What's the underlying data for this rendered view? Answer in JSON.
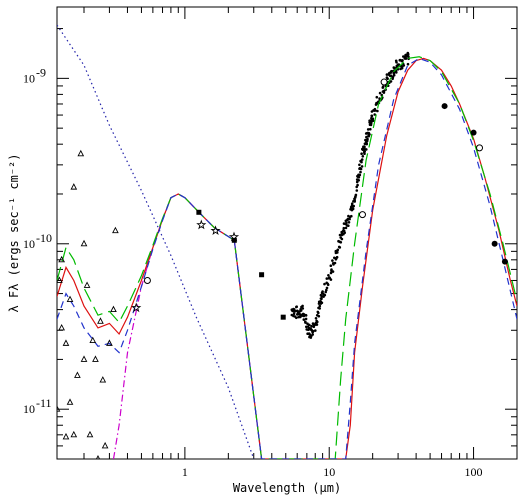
{
  "chart_data": {
    "type": "line",
    "xlabel": "Wavelength (μm)",
    "ylabel": "λ Fλ (ergs sec⁻¹ cm⁻²)",
    "xscale": "log",
    "yscale": "log",
    "xlim": [
      0.13,
      200
    ],
    "ylim": [
      5e-12,
      2.7e-09
    ],
    "grid": false,
    "x_tick_labels": [
      {
        "v": 1,
        "label": "1"
      },
      {
        "v": 10,
        "label": "10"
      },
      {
        "v": 100,
        "label": "100"
      }
    ],
    "y_tick_labels": [
      {
        "v": 1e-11,
        "label": "10",
        "exp": "-11"
      },
      {
        "v": 1e-10,
        "label": "10",
        "exp": "-10"
      },
      {
        "v": 1e-09,
        "label": "10",
        "exp": "-9"
      }
    ],
    "series": [
      {
        "style": "dotted",
        "color": "#2222aa",
        "points": [
          [
            0.13,
            2.1e-09
          ],
          [
            0.2,
            1.2e-09
          ],
          [
            0.3,
            5.2e-10
          ],
          [
            0.5,
            2.1e-10
          ],
          [
            0.8,
            8.5e-11
          ],
          [
            1.2,
            3.6e-11
          ],
          [
            2.0,
            1.35e-11
          ],
          [
            3.0,
            5e-12
          ]
        ]
      },
      {
        "style": "dash-dot",
        "color": "#cc00cc",
        "points": [
          [
            0.32,
            5e-12
          ],
          [
            0.35,
            8e-12
          ],
          [
            0.4,
            2.2e-11
          ],
          [
            0.5,
            5.5e-11
          ],
          [
            0.6,
            9.5e-11
          ],
          [
            0.7,
            1.4e-10
          ],
          [
            0.8,
            1.9e-10
          ],
          [
            0.9,
            2e-10
          ],
          [
            1.0,
            1.9e-10
          ],
          [
            1.3,
            1.5e-10
          ],
          [
            1.6,
            1.25e-10
          ],
          [
            2.2,
            1.05e-10
          ],
          [
            3.4,
            5e-12
          ]
        ]
      },
      {
        "style": "solid",
        "color": "#dd1111",
        "points": [
          [
            0.13,
            4.8e-11
          ],
          [
            0.15,
            7.2e-11
          ],
          [
            0.17,
            6e-11
          ],
          [
            0.2,
            4.2e-11
          ],
          [
            0.25,
            3.1e-11
          ],
          [
            0.3,
            3.3e-11
          ],
          [
            0.35,
            2.85e-11
          ],
          [
            0.4,
            3.6e-11
          ],
          [
            0.5,
            6e-11
          ],
          [
            0.6,
            9.5e-11
          ],
          [
            0.7,
            1.4e-10
          ],
          [
            0.8,
            1.9e-10
          ],
          [
            0.9,
            2e-10
          ],
          [
            1.0,
            1.9e-10
          ],
          [
            1.3,
            1.5e-10
          ],
          [
            1.6,
            1.25e-10
          ],
          [
            2.2,
            1.05e-10
          ],
          [
            3.4,
            5e-12
          ],
          [
            13,
            5e-12
          ],
          [
            14,
            8e-12
          ],
          [
            15,
            2.2e-11
          ],
          [
            17,
            5.5e-11
          ],
          [
            20,
            1.6e-10
          ],
          [
            25,
            4.5e-10
          ],
          [
            30,
            8.3e-10
          ],
          [
            35,
            1.12e-09
          ],
          [
            40,
            1.28e-09
          ],
          [
            45,
            1.32e-09
          ],
          [
            50,
            1.28e-09
          ],
          [
            60,
            1.12e-09
          ],
          [
            70,
            9e-10
          ],
          [
            80,
            7e-10
          ],
          [
            100,
            4.3e-10
          ],
          [
            120,
            2.5e-10
          ],
          [
            150,
            1.2e-10
          ],
          [
            180,
            6e-11
          ],
          [
            200,
            4.2e-11
          ]
        ]
      },
      {
        "style": "long-dash",
        "color": "#00bb00",
        "points": [
          [
            0.13,
            6e-11
          ],
          [
            0.15,
            9.5e-11
          ],
          [
            0.17,
            8e-11
          ],
          [
            0.2,
            5.4e-11
          ],
          [
            0.25,
            3.7e-11
          ],
          [
            0.3,
            3.9e-11
          ],
          [
            0.35,
            3.35e-11
          ],
          [
            0.4,
            4.2e-11
          ],
          [
            0.5,
            6.4e-11
          ],
          [
            0.6,
            9.8e-11
          ],
          [
            0.7,
            1.42e-10
          ],
          [
            0.8,
            1.9e-10
          ],
          [
            0.9,
            2e-10
          ],
          [
            1.0,
            1.9e-10
          ],
          [
            1.3,
            1.5e-10
          ],
          [
            1.6,
            1.25e-10
          ],
          [
            2.2,
            1.05e-10
          ],
          [
            3.4,
            5e-12
          ],
          [
            11,
            5e-12
          ],
          [
            12,
            1.5e-11
          ],
          [
            13,
            3.5e-11
          ],
          [
            15,
            1e-10
          ],
          [
            18,
            3.2e-10
          ],
          [
            22,
            7e-10
          ],
          [
            28,
            1.1e-09
          ],
          [
            35,
            1.32e-09
          ],
          [
            42,
            1.35e-09
          ],
          [
            50,
            1.28e-09
          ],
          [
            60,
            1.1e-09
          ],
          [
            80,
            7e-10
          ],
          [
            100,
            4.2e-10
          ],
          [
            130,
            2e-10
          ],
          [
            160,
            1e-10
          ],
          [
            200,
            4.5e-11
          ]
        ]
      },
      {
        "style": "short-dash",
        "color": "#2233cc",
        "points": [
          [
            0.13,
            3.5e-11
          ],
          [
            0.15,
            5e-11
          ],
          [
            0.17,
            4.2e-11
          ],
          [
            0.2,
            3.1e-11
          ],
          [
            0.25,
            2.4e-11
          ],
          [
            0.3,
            2.5e-11
          ],
          [
            0.35,
            2.2e-11
          ],
          [
            0.4,
            3e-11
          ],
          [
            0.5,
            5.5e-11
          ],
          [
            0.6,
            9.3e-11
          ],
          [
            0.7,
            1.38e-10
          ],
          [
            0.8,
            1.9e-10
          ],
          [
            0.9,
            2e-10
          ],
          [
            1.0,
            1.9e-10
          ],
          [
            1.3,
            1.5e-10
          ],
          [
            1.6,
            1.25e-10
          ],
          [
            2.2,
            1.05e-10
          ],
          [
            3.4,
            5e-12
          ],
          [
            13,
            5e-12
          ],
          [
            14,
            1.1e-11
          ],
          [
            15,
            2.5e-11
          ],
          [
            18,
            9e-11
          ],
          [
            22,
            3e-10
          ],
          [
            28,
            7.5e-10
          ],
          [
            35,
            1.2e-09
          ],
          [
            42,
            1.32e-09
          ],
          [
            50,
            1.25e-09
          ],
          [
            60,
            1.05e-09
          ],
          [
            80,
            6.5e-10
          ],
          [
            100,
            3.8e-10
          ],
          [
            130,
            1.7e-10
          ],
          [
            160,
            8e-11
          ],
          [
            200,
            3.5e-11
          ]
        ]
      }
    ],
    "observations": {
      "triangles": [
        [
          0.135,
          6e-11
        ],
        [
          0.14,
          3.1e-11
        ],
        [
          0.15,
          2.5e-11
        ],
        [
          0.16,
          1.1e-11
        ],
        [
          0.17,
          7e-12
        ],
        [
          0.18,
          1.6e-11
        ],
        [
          0.2,
          1e-10
        ],
        [
          0.19,
          3.5e-10
        ],
        [
          0.22,
          7e-12
        ],
        [
          0.23,
          2.6e-11
        ],
        [
          0.25,
          5e-12
        ],
        [
          0.27,
          1.5e-11
        ],
        [
          0.3,
          2.5e-11
        ],
        [
          0.32,
          4e-11
        ],
        [
          0.33,
          1.2e-10
        ],
        [
          0.2,
          2e-11
        ],
        [
          0.14,
          8e-11
        ],
        [
          0.16,
          4.6e-11
        ],
        [
          0.24,
          2e-11
        ],
        [
          0.28,
          6e-12
        ],
        [
          0.13,
          1e-11
        ],
        [
          0.21,
          5.6e-11
        ],
        [
          0.15,
          6.8e-12
        ],
        [
          0.26,
          3.4e-11
        ],
        [
          0.17,
          2.2e-10
        ]
      ],
      "filled_circles": [
        [
          63,
          6.8e-10
        ],
        [
          100,
          4.7e-10
        ],
        [
          140,
          1e-10
        ],
        [
          165,
          7.8e-11
        ]
      ],
      "open_circles": [
        [
          0.55,
          6e-11
        ],
        [
          17,
          1.5e-10
        ],
        [
          24,
          9.5e-10
        ],
        [
          110,
          3.8e-10
        ]
      ],
      "stars": [
        [
          0.46,
          4.1e-11
        ],
        [
          1.3,
          1.3e-10
        ],
        [
          1.63,
          1.2e-10
        ],
        [
          2.19,
          1.1e-10
        ]
      ],
      "squares": [
        [
          1.25,
          1.55e-10
        ],
        [
          3.4,
          6.5e-11
        ],
        [
          4.8,
          3.6e-11
        ],
        [
          2.2,
          1.05e-10
        ]
      ],
      "iras_scan": {
        "x_range": [
          5,
          38
        ],
        "points": [
          [
            5.5,
            4e-11
          ],
          [
            6,
            3.8e-11
          ],
          [
            6.5,
            4e-11
          ],
          [
            7,
            3.2e-11
          ],
          [
            7.5,
            2.9e-11
          ],
          [
            8,
            3.3e-11
          ],
          [
            8.5,
            4.1e-11
          ],
          [
            9,
            4.9e-11
          ],
          [
            10,
            6.2e-11
          ],
          [
            11,
            8.2e-11
          ],
          [
            12,
            1.08e-10
          ],
          [
            13,
            1.3e-10
          ],
          [
            14,
            1.5e-10
          ],
          [
            15,
            1.9e-10
          ],
          [
            16,
            2.6e-10
          ],
          [
            17,
            3.4e-10
          ],
          [
            18,
            4.2e-10
          ],
          [
            19,
            5e-10
          ],
          [
            20,
            5.8e-10
          ],
          [
            22,
            7.4e-10
          ],
          [
            24,
            8.8e-10
          ],
          [
            26,
            1e-09
          ],
          [
            28,
            1.1e-09
          ],
          [
            30,
            1.2e-09
          ],
          [
            33,
            1.28e-09
          ],
          [
            36,
            1.33e-09
          ]
        ]
      }
    }
  }
}
